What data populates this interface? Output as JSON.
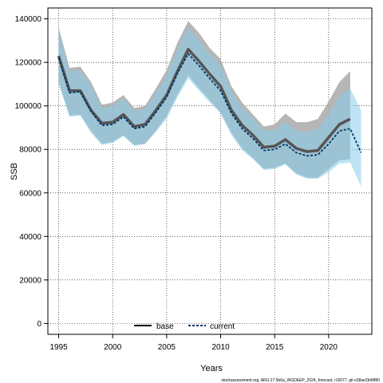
{
  "chart_data": {
    "type": "line",
    "xlabel": "Years",
    "ylabel": "SSB",
    "xlim": [
      1994,
      2024
    ],
    "ylim": [
      -5000,
      145000
    ],
    "x_ticks": [
      1995,
      2000,
      2005,
      2010,
      2015,
      2020
    ],
    "y_ticks": [
      0,
      20000,
      40000,
      60000,
      80000,
      100000,
      120000,
      140000
    ],
    "grid": true,
    "legend_position": "bottom-center",
    "footer": "stockassessment.org, ARU.27.5b6a_WGDEEP_2024_forecast, r16077, git e38ae2b49f80",
    "series": [
      {
        "name": "base",
        "x": [
          1995,
          1996,
          1997,
          1998,
          1999,
          2000,
          2001,
          2002,
          2003,
          2004,
          2005,
          2006,
          2007,
          2008,
          2009,
          2010,
          2011,
          2012,
          2013,
          2014,
          2015,
          2016,
          2017,
          2018,
          2019,
          2020,
          2021,
          2022
        ],
        "values": [
          123000,
          107000,
          107000,
          98000,
          92000,
          92500,
          96000,
          90500,
          91500,
          98000,
          105000,
          116000,
          126000,
          120500,
          114500,
          109000,
          98000,
          91000,
          86500,
          81000,
          81500,
          84500,
          80500,
          79000,
          79500,
          85500,
          91500,
          94000
        ],
        "upper": [
          136000,
          117500,
          118000,
          111000,
          100500,
          101500,
          105000,
          99000,
          100000,
          108000,
          116500,
          129000,
          139000,
          133500,
          126500,
          121500,
          109000,
          101500,
          96000,
          90500,
          91500,
          96500,
          92500,
          92500,
          94000,
          102000,
          111000,
          116000
        ],
        "lower": [
          111000,
          95500,
          96000,
          88500,
          82500,
          83500,
          86500,
          82000,
          82500,
          88500,
          95500,
          105000,
          114000,
          108000,
          102500,
          97000,
          87500,
          80500,
          76000,
          71000,
          71500,
          73500,
          69000,
          67000,
          67000,
          71000,
          75000,
          75500
        ],
        "color": "#000000",
        "band_color": "#a9a9a9"
      },
      {
        "name": "current",
        "x": [
          1995,
          1996,
          1997,
          1998,
          1999,
          2000,
          2001,
          2002,
          2003,
          2004,
          2005,
          2006,
          2007,
          2008,
          2009,
          2010,
          2011,
          2012,
          2013,
          2014,
          2015,
          2016,
          2017,
          2018,
          2019,
          2020,
          2021,
          2022,
          2023
        ],
        "values": [
          122000,
          106000,
          106500,
          97500,
          91000,
          91500,
          95000,
          89500,
          90500,
          97000,
          104000,
          115000,
          124000,
          118500,
          112500,
          107000,
          96500,
          89500,
          85000,
          79500,
          80000,
          82500,
          78500,
          77000,
          77500,
          82500,
          88500,
          89500,
          78500
        ],
        "upper": [
          134000,
          116000,
          116500,
          109500,
          99000,
          100000,
          103500,
          97500,
          98500,
          106000,
          114000,
          126000,
          136000,
          130000,
          123500,
          118500,
          106500,
          99000,
          94500,
          88500,
          89000,
          92500,
          88500,
          88000,
          89500,
          96000,
          104500,
          108000,
          98000
        ],
        "lower": [
          110000,
          95000,
          95500,
          87500,
          82000,
          83000,
          86000,
          81500,
          82500,
          88000,
          94000,
          104000,
          112500,
          107000,
          101500,
          96500,
          86500,
          79500,
          75500,
          70500,
          71000,
          73000,
          68500,
          66500,
          66500,
          69500,
          73500,
          74000,
          63000
        ],
        "color": "#003366",
        "band_color": "#87ceeb"
      }
    ]
  }
}
